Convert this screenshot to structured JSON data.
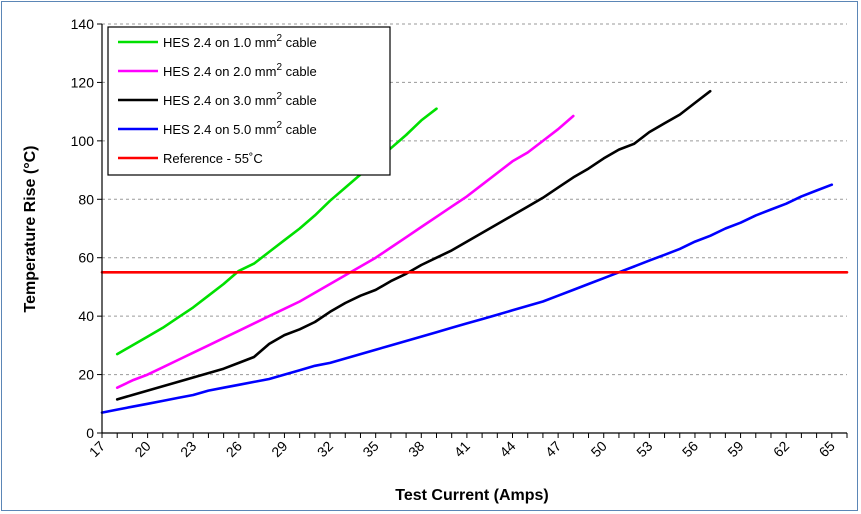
{
  "chart_data": {
    "type": "line",
    "title": "",
    "xlabel": "Test Current (Amps)",
    "ylabel": "Temperature Rise (°C)",
    "xlim": [
      17,
      66
    ],
    "ylim": [
      0,
      140
    ],
    "yticks": [
      0,
      20,
      40,
      60,
      80,
      100,
      120,
      140
    ],
    "xticks": [
      "17",
      "20",
      "23",
      "26",
      "29",
      "32",
      "35",
      "38",
      "41",
      "44",
      "47",
      "50",
      "53",
      "56",
      "59",
      "62",
      "65"
    ],
    "grid": "horizontal dashed",
    "legend_position": "top-left",
    "series": [
      {
        "name": "HES 2.4 on 1.0 mm² cable",
        "legend_main": "HES 2.4 on 1.0 mm",
        "legend_sup": "2",
        "legend_tail": " cable",
        "color": "#00e000",
        "points": [
          [
            18,
            27
          ],
          [
            19,
            30
          ],
          [
            20,
            33
          ],
          [
            21,
            36
          ],
          [
            22,
            39.5
          ],
          [
            23,
            43
          ],
          [
            24,
            47
          ],
          [
            25,
            51
          ],
          [
            26,
            55.5
          ],
          [
            27,
            58
          ],
          [
            28,
            62
          ],
          [
            29,
            66
          ],
          [
            30,
            70
          ],
          [
            31,
            74.5
          ],
          [
            32,
            79.5
          ],
          [
            33,
            84
          ],
          [
            34,
            88.5
          ],
          [
            35,
            93
          ],
          [
            36,
            97.5
          ],
          [
            37,
            102
          ],
          [
            38,
            107
          ],
          [
            39,
            111
          ]
        ]
      },
      {
        "name": "HES 2.4 on 2.0 mm² cable",
        "legend_main": "HES 2.4 on 2.0 mm",
        "legend_sup": "2",
        "legend_tail": " cable",
        "color": "#ff00ff",
        "points": [
          [
            18,
            15.5
          ],
          [
            19,
            18
          ],
          [
            20,
            20
          ],
          [
            21,
            22.5
          ],
          [
            22,
            25
          ],
          [
            23,
            27.5
          ],
          [
            24,
            30
          ],
          [
            25,
            32.5
          ],
          [
            26,
            35
          ],
          [
            27,
            37.5
          ],
          [
            28,
            40
          ],
          [
            29,
            42.5
          ],
          [
            30,
            45
          ],
          [
            31,
            48
          ],
          [
            32,
            51
          ],
          [
            33,
            54
          ],
          [
            34,
            57
          ],
          [
            35,
            60
          ],
          [
            36,
            63.5
          ],
          [
            37,
            67
          ],
          [
            38,
            70.5
          ],
          [
            39,
            74
          ],
          [
            40,
            77.5
          ],
          [
            41,
            81
          ],
          [
            42,
            85
          ],
          [
            43,
            89
          ],
          [
            44,
            93
          ],
          [
            45,
            96
          ],
          [
            46,
            100
          ],
          [
            47,
            104
          ],
          [
            48,
            108.5
          ]
        ]
      },
      {
        "name": "HES 2.4 on 3.0 mm² cable",
        "legend_main": "HES 2.4 on 3.0 mm",
        "legend_sup": "2",
        "legend_tail": " cable",
        "color": "#000000",
        "points": [
          [
            18,
            11.5
          ],
          [
            19,
            13
          ],
          [
            20,
            14.5
          ],
          [
            21,
            16
          ],
          [
            22,
            17.5
          ],
          [
            23,
            19
          ],
          [
            24,
            20.5
          ],
          [
            25,
            22
          ],
          [
            26,
            24
          ],
          [
            27,
            26
          ],
          [
            28,
            30.5
          ],
          [
            29,
            33.5
          ],
          [
            30,
            35.5
          ],
          [
            31,
            38
          ],
          [
            32,
            41.5
          ],
          [
            33,
            44.5
          ],
          [
            34,
            47
          ],
          [
            35,
            49
          ],
          [
            36,
            52
          ],
          [
            37,
            54.5
          ],
          [
            38,
            57.5
          ],
          [
            39,
            60
          ],
          [
            40,
            62.5
          ],
          [
            41,
            65.5
          ],
          [
            42,
            68.5
          ],
          [
            43,
            71.5
          ],
          [
            44,
            74.5
          ],
          [
            45,
            77.5
          ],
          [
            46,
            80.5
          ],
          [
            47,
            84
          ],
          [
            48,
            87.5
          ],
          [
            49,
            90.5
          ],
          [
            50,
            94
          ],
          [
            51,
            97
          ],
          [
            52,
            99
          ],
          [
            53,
            103
          ],
          [
            54,
            106
          ],
          [
            55,
            109
          ],
          [
            56,
            113
          ],
          [
            57,
            117
          ]
        ]
      },
      {
        "name": "HES 2.4 on 5.0 mm² cable",
        "legend_main": "HES 2.4 on 5.0 mm",
        "legend_sup": "2",
        "legend_tail": " cable",
        "color": "#0000ff",
        "points": [
          [
            17,
            7
          ],
          [
            18,
            8
          ],
          [
            19,
            9
          ],
          [
            20,
            10
          ],
          [
            21,
            11
          ],
          [
            22,
            12
          ],
          [
            23,
            13
          ],
          [
            24,
            14.5
          ],
          [
            25,
            15.5
          ],
          [
            26,
            16.5
          ],
          [
            27,
            17.5
          ],
          [
            28,
            18.5
          ],
          [
            29,
            20
          ],
          [
            30,
            21.5
          ],
          [
            31,
            23
          ],
          [
            32,
            24
          ],
          [
            33,
            25.5
          ],
          [
            34,
            27
          ],
          [
            35,
            28.5
          ],
          [
            36,
            30
          ],
          [
            37,
            31.5
          ],
          [
            38,
            33
          ],
          [
            39,
            34.5
          ],
          [
            40,
            36
          ],
          [
            41,
            37.5
          ],
          [
            42,
            39
          ],
          [
            43,
            40.5
          ],
          [
            44,
            42
          ],
          [
            45,
            43.5
          ],
          [
            46,
            45
          ],
          [
            47,
            47
          ],
          [
            48,
            49
          ],
          [
            49,
            51
          ],
          [
            50,
            53
          ],
          [
            51,
            55
          ],
          [
            52,
            57
          ],
          [
            53,
            59
          ],
          [
            54,
            61
          ],
          [
            55,
            63
          ],
          [
            56,
            65.5
          ],
          [
            57,
            67.5
          ],
          [
            58,
            70
          ],
          [
            59,
            72
          ],
          [
            60,
            74.5
          ],
          [
            61,
            76.5
          ],
          [
            62,
            78.5
          ],
          [
            63,
            81
          ],
          [
            64,
            83
          ],
          [
            65,
            85
          ]
        ]
      },
      {
        "name": "Reference - 55°C",
        "legend_main": "Reference - 55˚C",
        "legend_sup": "",
        "legend_tail": "",
        "color": "#ff0000",
        "points": [
          [
            17,
            55
          ],
          [
            66,
            55
          ]
        ]
      }
    ]
  }
}
